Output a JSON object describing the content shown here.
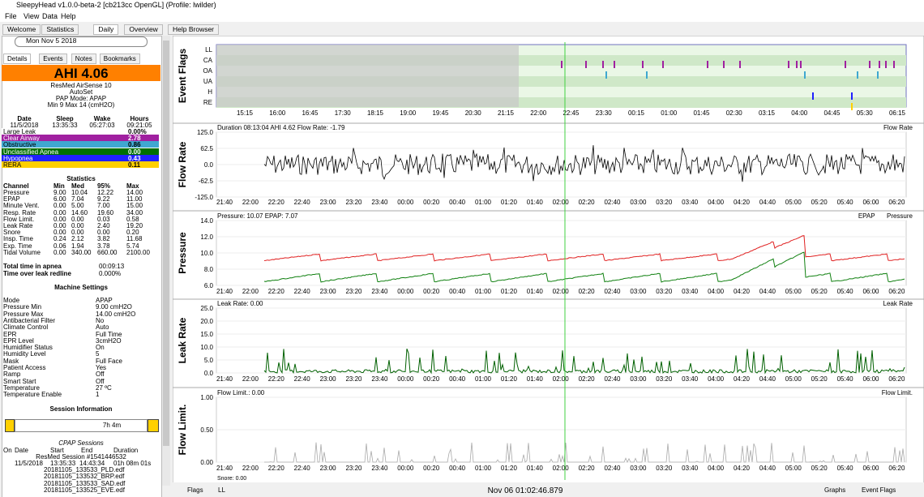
{
  "window": {
    "title": "SleepyHead v1.0.0-beta-2 [cb213cc OpenGL] (Profile: lwilder)",
    "menu": [
      "File",
      "View",
      "Data",
      "Help"
    ]
  },
  "tabs": [
    "Welcome",
    "Statistics",
    "Daily",
    "Overview",
    "Help Browser"
  ],
  "date": "Mon Nov 5 2018",
  "side_tabs": [
    "Details",
    "Events",
    "Notes",
    "Bookmarks"
  ],
  "ahi": "AHI 4.06",
  "machine": [
    "ResMed AirSense 10",
    "AutoSet",
    "PAP Mode: APAP",
    "Min 9 Max 14 (cmH2O)"
  ],
  "summary": {
    "header": [
      "Date",
      "Sleep",
      "Wake",
      "Hours"
    ],
    "row": [
      "11/5/2018",
      "13:35:33",
      "05:27:03",
      "09:21:05"
    ]
  },
  "indices": [
    {
      "name": "Large Leak",
      "value": "0.00%",
      "color": "#ffffff",
      "text": "#000000"
    },
    {
      "name": "Clear Airway",
      "value": "2.78",
      "color": "#a020a0",
      "text": "#ffffff"
    },
    {
      "name": "Obstructive",
      "value": "0.86",
      "color": "#40a8d0",
      "text": "#000000"
    },
    {
      "name": "Unclassified Apnea",
      "value": "0.00",
      "color": "#007000",
      "text": "#ffffff"
    },
    {
      "name": "Hypopnea",
      "value": "0.43",
      "color": "#2020ff",
      "text": "#ffffff"
    },
    {
      "name": "RERA",
      "value": "0.11",
      "color": "#ffd000",
      "text": "#000000"
    }
  ],
  "statistics": {
    "title": "Statistics",
    "header": [
      "Channel",
      "Min",
      "Med",
      "95%",
      "Max"
    ],
    "rows": [
      [
        "Pressure",
        "9.00",
        "10.04",
        "12.22",
        "14.00"
      ],
      [
        "EPAP",
        "6.00",
        "7.04",
        "9.22",
        "11.00"
      ],
      [
        "Minute Vent.",
        "0.00",
        "5.00",
        "7.00",
        "15.00"
      ],
      [
        "Resp. Rate",
        "0.00",
        "14.60",
        "19.60",
        "34.00"
      ],
      [
        "Flow Limit.",
        "0.00",
        "0.00",
        "0.03",
        "0.58"
      ],
      [
        "Leak Rate",
        "0.00",
        "0.00",
        "2.40",
        "19.20"
      ],
      [
        "Snore",
        "0.00",
        "0.00",
        "0.00",
        "0.20"
      ],
      [
        "Insp. Time",
        "0.24",
        "2.12",
        "3.82",
        "11.68"
      ],
      [
        "Exp. Time",
        "0.06",
        "1.94",
        "3.78",
        "5.74"
      ],
      [
        "Tidal Volume",
        "0.00",
        "340.00",
        "660.00",
        "2100.00"
      ]
    ]
  },
  "apnea": [
    [
      "Total time in apnea",
      "00:09:13"
    ],
    [
      "Time over leak redline",
      "0.000%"
    ]
  ],
  "settings": {
    "title": "Machine Settings",
    "rows": [
      [
        "Mode",
        "APAP"
      ],
      [
        "Pressure Min",
        "9.00 cmH2O"
      ],
      [
        "Pressure Max",
        "14.00 cmH2O"
      ],
      [
        "Antibacterial Filter",
        "No"
      ],
      [
        "Climate Control",
        "Auto"
      ],
      [
        "EPR",
        "Full Time"
      ],
      [
        "EPR Level",
        "3cmH2O"
      ],
      [
        "Humidifier Status",
        "On"
      ],
      [
        "Humidity Level",
        "5"
      ],
      [
        "Mask",
        "Full Face"
      ],
      [
        "Patient Access",
        "Yes"
      ],
      [
        "Ramp",
        "Off"
      ],
      [
        "Smart Start",
        "Off"
      ],
      [
        "Temperature",
        "27 ºC"
      ],
      [
        "Temperature Enable",
        "1"
      ]
    ]
  },
  "session": {
    "title": "Session Information",
    "bar": "7h 4m",
    "cpap": "CPAP Sessions",
    "header": [
      "On",
      "Date",
      "Start",
      "End",
      "Duration"
    ],
    "device": "ResMed Session #1541446532",
    "row": [
      "11/5/2018",
      "13:35:33",
      "14:43:34",
      "01h 08m 01s"
    ],
    "files": [
      "20181105_133533_PLD.edf",
      "20181105_133532_BRP.edf",
      "20181105_133533_SAD.edf",
      "20181105_133525_EVE.edf"
    ]
  },
  "graphs": [
    {
      "label": "Event Flags",
      "rows": [
        "LL",
        "CA",
        "OA",
        "UA",
        "H",
        "RE"
      ],
      "xticks": [
        "15:15",
        "16:00",
        "16:45",
        "17:30",
        "18:15",
        "19:00",
        "19:45",
        "20:30",
        "21:15",
        "22:00",
        "22:45",
        "23:30",
        "00:15",
        "01:00",
        "01:45",
        "02:30",
        "03:15",
        "04:00",
        "04:45",
        "05:30",
        "06:15"
      ]
    },
    {
      "label": "Flow Rate",
      "info": "Duration 08:13:04 AHI 4.62 Flow Rate: -1.79",
      "legend": [
        "Flow Rate"
      ],
      "yticks": [
        "125.0",
        "62.5",
        "0.0",
        "-62.5",
        "-125.0"
      ]
    },
    {
      "label": "Pressure",
      "info": "Pressure: 10.07 EPAP: 7.07",
      "legend": [
        "EPAP",
        "Pressure"
      ],
      "yticks": [
        "14.0",
        "12.0",
        "10.0",
        "8.0",
        "6.0"
      ]
    },
    {
      "label": "Leak Rate",
      "info": "Leak Rate: 0.00",
      "legend": [
        "Leak Rate"
      ],
      "yticks": [
        "25.0",
        "20.0",
        "15.0",
        "10.0",
        "5.0",
        "0.0"
      ]
    },
    {
      "label": "Flow Limit.",
      "info": "Flow Limit.: 0.00",
      "legend": [
        "Flow Limit."
      ],
      "yticks": [
        "1.00",
        "0.50",
        "0.00"
      ]
    }
  ],
  "time_ticks": [
    "21:40",
    "22:00",
    "22:20",
    "22:40",
    "23:00",
    "23:20",
    "23:40",
    "00:00",
    "00:20",
    "00:40",
    "01:00",
    "01:20",
    "01:40",
    "02:00",
    "02:20",
    "02:40",
    "03:00",
    "03:20",
    "03:40",
    "04:00",
    "04:20",
    "04:40",
    "05:00",
    "05:20",
    "05:40",
    "06:00",
    "06:20"
  ],
  "snore_info": "Snore: 0.00",
  "bottom": {
    "flags": "Flags",
    "ll": "LL",
    "time": "Nov 06 01:02:46.879",
    "graphs": "Graphs",
    "event_flags": "Event Flags"
  }
}
